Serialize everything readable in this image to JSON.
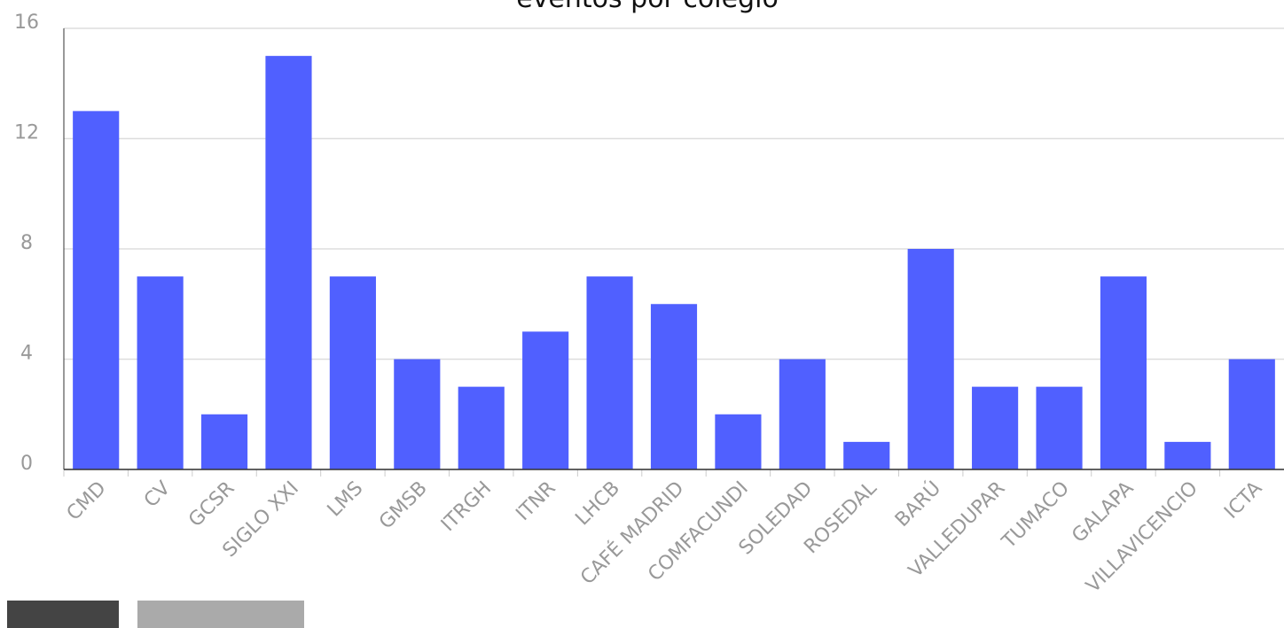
{
  "chart_data": {
    "type": "bar",
    "title": "eventos por colegio",
    "categories": [
      "CMD",
      "CV",
      "GCSR",
      "SIGLO XXI",
      "LMS",
      "GMSB",
      "ITRGH",
      "ITNR",
      "LHCB",
      "CAFÉ MADRID",
      "COMFACUNDI",
      "SOLEDAD",
      "ROSEDAL",
      "BARÚ",
      "VALLEDUPAR",
      "TUMACO",
      "GALAPA",
      "VILLAVICENCIO",
      "ICTA"
    ],
    "values": [
      13,
      7,
      2,
      15,
      7,
      4,
      3,
      5,
      7,
      6,
      2,
      4,
      1,
      8,
      3,
      3,
      7,
      1,
      4
    ],
    "color": "#5060ff",
    "ylim": [
      0,
      16
    ],
    "yticks": [
      0,
      4,
      8,
      12,
      16
    ],
    "grid": true
  }
}
